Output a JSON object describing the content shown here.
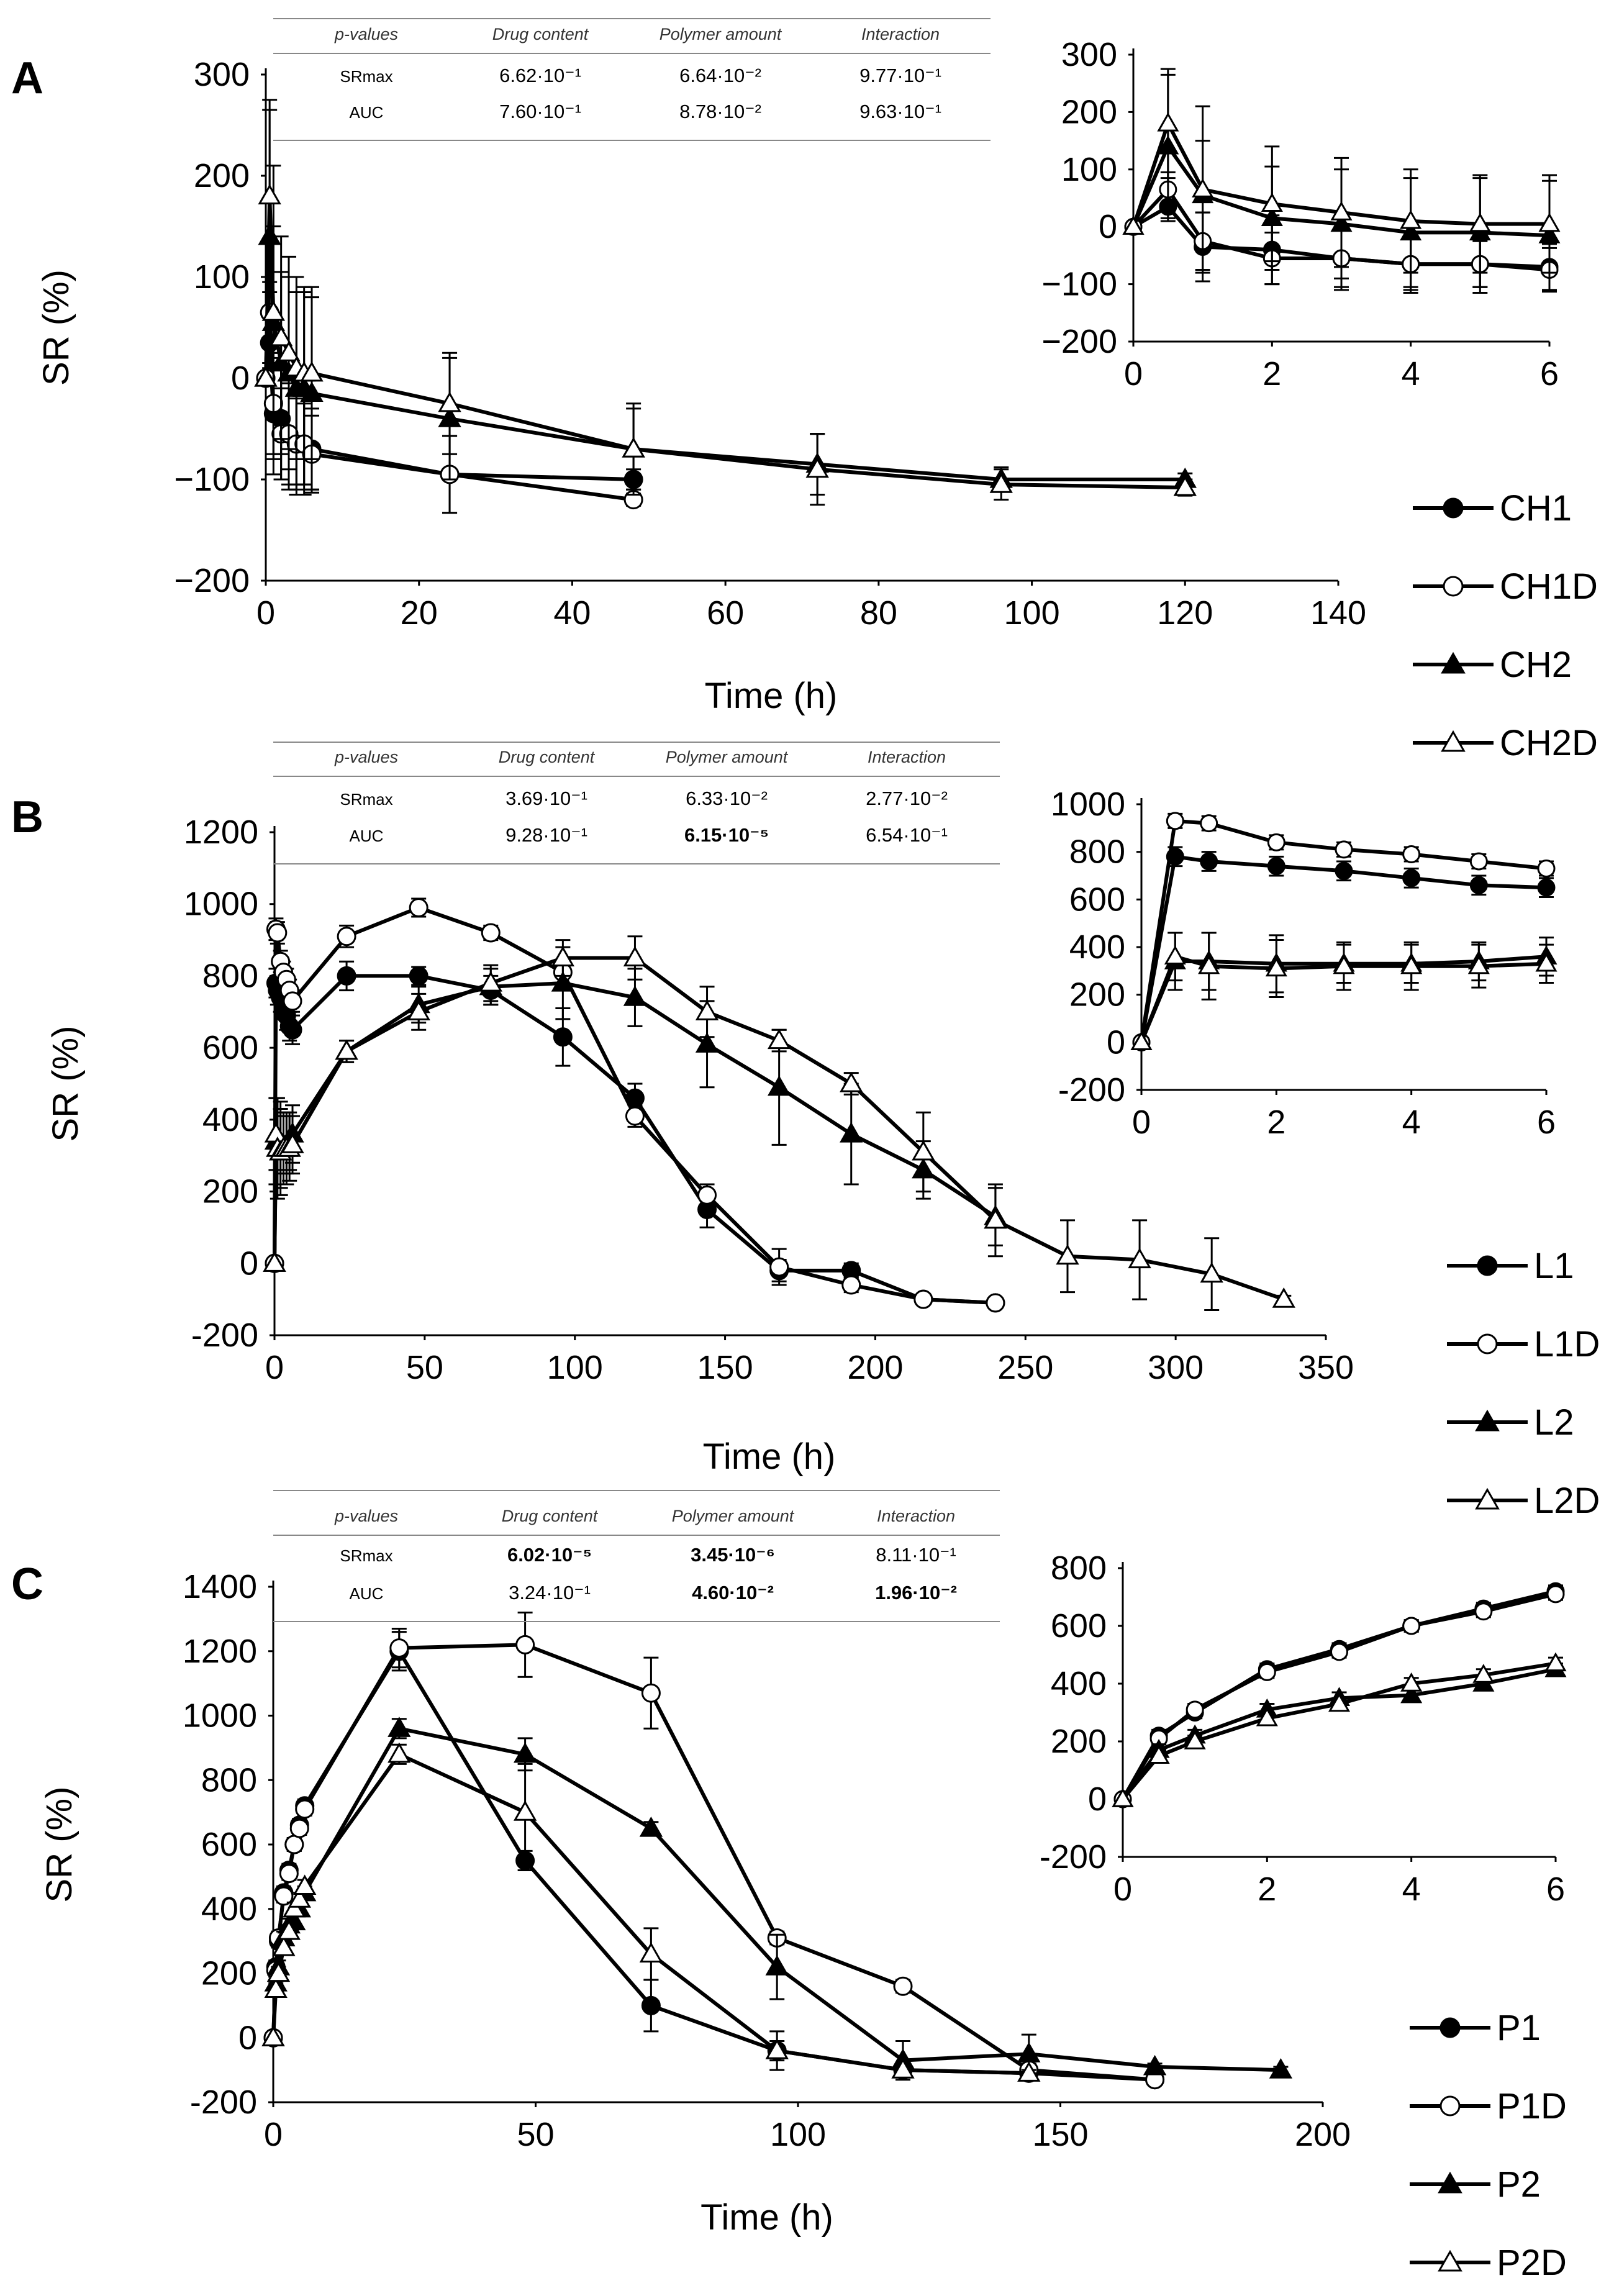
{
  "chart_data": [
    {
      "type": "line",
      "panel": "A",
      "ylabel": "SR (%)",
      "xlabel": "Time (h)",
      "xlim": [
        0,
        140
      ],
      "ylim": [
        -200,
        300
      ],
      "xticks": [
        "0",
        "20",
        "40",
        "60",
        "80",
        "100",
        "120",
        "140"
      ],
      "yticks": [
        "300",
        "200",
        "100",
        "0",
        "−100",
        "−200"
      ],
      "pvalues": {
        "headers": [
          "p-values",
          "Drug content",
          "Polymer amount",
          "Interaction"
        ],
        "rows": [
          {
            "label": "SRmax",
            "values": [
              "6.62·10⁻¹",
              "6.64·10⁻²",
              "9.77·10⁻¹"
            ],
            "bold": [
              false,
              false,
              false
            ]
          },
          {
            "label": "AUC",
            "values": [
              "7.60·10⁻¹",
              "8.78·10⁻²",
              "9.63·10⁻¹"
            ],
            "bold": [
              false,
              false,
              false
            ]
          }
        ]
      },
      "inset": {
        "xlim": [
          0,
          6
        ],
        "ylim": [
          -200,
          300
        ],
        "xticks": [
          "0",
          "2",
          "4",
          "6"
        ],
        "yticks": [
          "300",
          "200",
          "100",
          "0",
          "−100",
          "−200"
        ]
      },
      "series": [
        {
          "name": "CH1",
          "marker": "circle-filled",
          "x": [
            0,
            0.5,
            1,
            2,
            3,
            4,
            5,
            6,
            24,
            48
          ],
          "y": [
            0,
            35,
            -35,
            -40,
            -55,
            -65,
            -65,
            -70,
            -95,
            -100
          ],
          "err": [
            0,
            25,
            60,
            60,
            50,
            45,
            40,
            40,
            38,
            10
          ]
        },
        {
          "name": "CH1D",
          "marker": "circle-open",
          "x": [
            0,
            0.5,
            1,
            2,
            3,
            4,
            5,
            6,
            24,
            48
          ],
          "y": [
            0,
            65,
            -25,
            -55,
            -55,
            -65,
            -65,
            -75,
            -95,
            -120
          ],
          "err": [
            0,
            30,
            50,
            45,
            55,
            50,
            50,
            38,
            38,
            6
          ]
        },
        {
          "name": "CH2",
          "marker": "triangle-filled",
          "x": [
            0,
            0.5,
            1,
            2,
            3,
            4,
            5,
            6,
            24,
            48,
            72,
            96,
            120
          ],
          "y": [
            0,
            140,
            55,
            15,
            5,
            -10,
            -10,
            -15,
            -40,
            -70,
            -85,
            -100,
            -100
          ],
          "err": [
            0,
            125,
            95,
            90,
            95,
            95,
            95,
            95,
            60,
            40,
            30,
            12,
            6
          ]
        },
        {
          "name": "CH2D",
          "marker": "triangle-open",
          "x": [
            0,
            0.5,
            1,
            2,
            3,
            4,
            5,
            6,
            24,
            48,
            72,
            96,
            120
          ],
          "y": [
            0,
            180,
            65,
            40,
            25,
            10,
            5,
            5,
            -25,
            -70,
            -90,
            -105,
            -108
          ],
          "err": [
            0,
            95,
            145,
            100,
            95,
            90,
            85,
            85,
            50,
            45,
            35,
            15,
            8
          ]
        }
      ]
    },
    {
      "type": "line",
      "panel": "B",
      "ylabel": "SR (%)",
      "xlabel": "Time (h)",
      "xlim": [
        0,
        350
      ],
      "ylim": [
        -200,
        1200
      ],
      "xticks": [
        "0",
        "50",
        "100",
        "150",
        "200",
        "250",
        "300",
        "350"
      ],
      "yticks": [
        "1200",
        "1000",
        "800",
        "600",
        "400",
        "200",
        "0",
        "-200"
      ],
      "pvalues": {
        "headers": [
          "p-values",
          "Drug content",
          "Polymer amount",
          "Interaction"
        ],
        "rows": [
          {
            "label": "SRmax",
            "values": [
              "3.69·10⁻¹",
              "6.33·10⁻²",
              "2.77·10⁻²"
            ],
            "bold": [
              false,
              false,
              false
            ]
          },
          {
            "label": "AUC",
            "values": [
              "9.28·10⁻¹",
              "6.15·10⁻⁵",
              "6.54·10⁻¹"
            ],
            "bold": [
              false,
              true,
              false
            ]
          }
        ]
      },
      "inset": {
        "xlim": [
          0,
          6
        ],
        "ylim": [
          -200,
          1000
        ],
        "xticks": [
          "0",
          "2",
          "4",
          "6"
        ],
        "yticks": [
          "1000",
          "800",
          "600",
          "400",
          "200",
          "0",
          "-200"
        ]
      },
      "series": [
        {
          "name": "L1",
          "marker": "circle-filled",
          "x": [
            0,
            0.5,
            1,
            2,
            3,
            4,
            5,
            6,
            24,
            48,
            72,
            96,
            120,
            144,
            168,
            192,
            216,
            240
          ],
          "y": [
            0,
            780,
            760,
            740,
            720,
            690,
            660,
            650,
            800,
            800,
            760,
            630,
            460,
            150,
            -20,
            -20,
            -100,
            -110
          ],
          "err": [
            0,
            40,
            40,
            40,
            40,
            40,
            40,
            40,
            40,
            25,
            40,
            80,
            40,
            50,
            30,
            20,
            10,
            10
          ]
        },
        {
          "name": "L1D",
          "marker": "circle-open",
          "x": [
            0,
            0.5,
            1,
            2,
            3,
            4,
            5,
            6,
            24,
            48,
            72,
            96,
            120,
            144,
            168,
            192,
            216,
            240
          ],
          "y": [
            0,
            930,
            920,
            840,
            810,
            790,
            760,
            730,
            910,
            990,
            920,
            810,
            410,
            190,
            -10,
            -60,
            -100,
            -110
          ],
          "err": [
            0,
            30,
            30,
            30,
            30,
            30,
            30,
            30,
            30,
            25,
            20,
            30,
            30,
            30,
            50,
            20,
            10,
            10
          ]
        },
        {
          "name": "L2",
          "marker": "triangle-filled",
          "x": [
            0,
            0.5,
            1,
            2,
            3,
            4,
            5,
            6,
            24,
            48,
            72,
            96,
            120,
            144,
            168,
            192,
            216,
            240
          ],
          "y": [
            0,
            340,
            340,
            330,
            330,
            330,
            340,
            360,
            590,
            720,
            770,
            780,
            740,
            610,
            490,
            360,
            260,
            130
          ],
          "err": [
            0,
            120,
            120,
            120,
            80,
            80,
            80,
            80,
            30,
            50,
            50,
            100,
            80,
            120,
            160,
            140,
            80,
            80
          ]
        },
        {
          "name": "L2D",
          "marker": "triangle-open",
          "x": [
            0,
            0.5,
            1,
            2,
            3,
            4,
            5,
            6,
            24,
            48,
            72,
            96,
            120,
            144,
            168,
            192,
            216,
            240,
            264,
            288,
            312,
            336
          ],
          "y": [
            0,
            360,
            320,
            310,
            320,
            320,
            320,
            330,
            590,
            700,
            780,
            850,
            850,
            700,
            620,
            500,
            310,
            120,
            20,
            10,
            -30,
            -100
          ],
          "err": [
            0,
            100,
            140,
            120,
            100,
            100,
            90,
            80,
            30,
            50,
            50,
            50,
            60,
            70,
            30,
            30,
            110,
            100,
            100,
            110,
            100,
            10
          ]
        }
      ]
    },
    {
      "type": "line",
      "panel": "C",
      "ylabel": "SR (%)",
      "xlabel": "Time (h)",
      "xlim": [
        0,
        200
      ],
      "ylim": [
        -200,
        1400
      ],
      "xticks": [
        "0",
        "50",
        "100",
        "150",
        "200"
      ],
      "yticks": [
        "1400",
        "1200",
        "1000",
        "800",
        "600",
        "400",
        "200",
        "0",
        "-200"
      ],
      "pvalues": {
        "headers": [
          "p-values",
          "Drug content",
          "Polymer amount",
          "Interaction"
        ],
        "rows": [
          {
            "label": "SRmax",
            "values": [
              "6.02·10⁻⁵",
              "3.45·10⁻⁶",
              "8.11·10⁻¹"
            ],
            "bold": [
              true,
              true,
              false
            ]
          },
          {
            "label": "AUC",
            "values": [
              "3.24·10⁻¹",
              "4.60·10⁻²",
              "1.96·10⁻²"
            ],
            "bold": [
              false,
              true,
              true
            ]
          }
        ]
      },
      "inset": {
        "xlim": [
          0,
          6
        ],
        "ylim": [
          -200,
          800
        ],
        "xticks": [
          "0",
          "2",
          "4",
          "6"
        ],
        "yticks": [
          "800",
          "600",
          "400",
          "200",
          "0",
          "-200"
        ]
      },
      "series": [
        {
          "name": "P1",
          "marker": "circle-filled",
          "x": [
            0,
            0.5,
            1,
            2,
            3,
            4,
            5,
            6,
            24,
            48,
            72,
            96,
            120,
            144,
            168
          ],
          "y": [
            0,
            220,
            300,
            450,
            520,
            600,
            660,
            720,
            1200,
            550,
            100,
            -40,
            -100,
            -110,
            -130
          ],
          "err": [
            0,
            20,
            20,
            20,
            20,
            20,
            20,
            20,
            60,
            30,
            80,
            30,
            20,
            10,
            10
          ]
        },
        {
          "name": "P1D",
          "marker": "circle-open",
          "x": [
            0,
            0.5,
            1,
            2,
            3,
            4,
            5,
            6,
            24,
            48,
            72,
            96,
            120,
            144,
            168
          ],
          "y": [
            0,
            210,
            310,
            440,
            510,
            600,
            650,
            710,
            1210,
            1220,
            1070,
            310,
            160,
            -100,
            -130
          ],
          "err": [
            0,
            20,
            20,
            20,
            20,
            20,
            20,
            20,
            60,
            100,
            110,
            20,
            20,
            20,
            10
          ]
        },
        {
          "name": "P2",
          "marker": "triangle-filled",
          "x": [
            0,
            0.5,
            1,
            2,
            3,
            4,
            5,
            6,
            24,
            48,
            72,
            96,
            120,
            144,
            168,
            192
          ],
          "y": [
            0,
            170,
            220,
            310,
            350,
            360,
            400,
            450,
            960,
            880,
            650,
            220,
            -70,
            -50,
            -90,
            -100
          ],
          "err": [
            0,
            20,
            20,
            20,
            20,
            20,
            20,
            20,
            30,
            50,
            20,
            100,
            60,
            60,
            10,
            10
          ]
        },
        {
          "name": "P2D",
          "marker": "triangle-open",
          "x": [
            0,
            0.5,
            1,
            2,
            3,
            4,
            5,
            6,
            24,
            48,
            72,
            96,
            120,
            144
          ],
          "y": [
            0,
            150,
            200,
            280,
            330,
            400,
            430,
            470,
            880,
            700,
            260,
            -40,
            -100,
            -110
          ],
          "err": [
            0,
            20,
            20,
            20,
            20,
            20,
            20,
            20,
            30,
            150,
            80,
            60,
            20,
            10
          ]
        }
      ]
    }
  ]
}
